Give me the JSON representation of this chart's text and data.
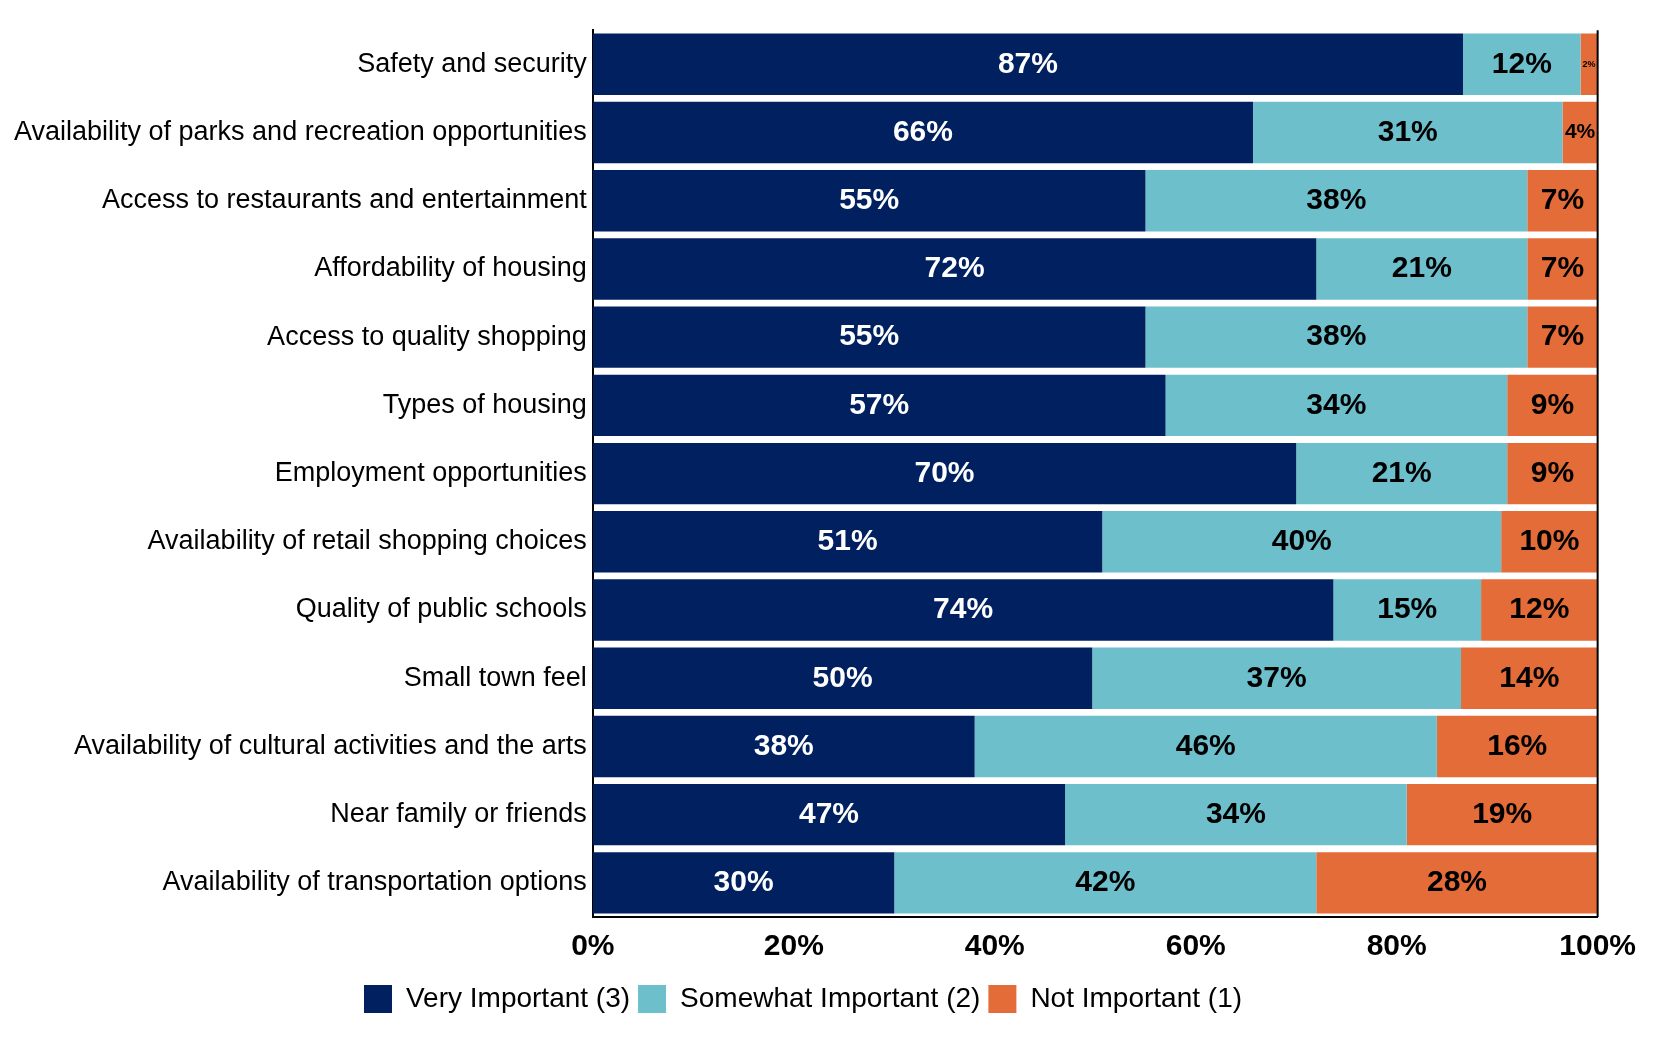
{
  "chart_data": {
    "type": "bar",
    "orientation": "horizontal",
    "stacked": true,
    "categories": [
      "Safety and security",
      "Availability of parks and recreation opportunities",
      "Access to restaurants and entertainment",
      "Affordability of housing",
      "Access to quality shopping",
      "Types of housing",
      "Employment opportunities",
      "Availability of retail shopping choices",
      "Quality of public schools",
      "Small town feel",
      "Availability of cultural activities and the arts",
      "Near family or friends",
      "Availability of transportation options"
    ],
    "series": [
      {
        "name": "Very Important (3)",
        "color": "#002060",
        "values": [
          86.6,
          65.7,
          55,
          72,
          55,
          57,
          70,
          50.7,
          73.7,
          49.7,
          38,
          47,
          30
        ],
        "value_labels": [
          "87%",
          "66%",
          "55%",
          "72%",
          "55%",
          "57%",
          "70%",
          "51%",
          "74%",
          "50%",
          "38%",
          "47%",
          "30%"
        ]
      },
      {
        "name": "Somewhat Important (2)",
        "color": "#6dbfcc",
        "values": [
          11.7,
          30.8,
          38,
          21,
          38,
          34,
          21,
          39.7,
          14.7,
          36.7,
          46,
          34,
          42
        ],
        "value_labels": [
          "12%",
          "31%",
          "38%",
          "21%",
          "38%",
          "34%",
          "21%",
          "40%",
          "15%",
          "37%",
          "46%",
          "34%",
          "42%"
        ]
      },
      {
        "name": "Not Important (1)",
        "color": "#e46c39",
        "values": [
          1.7,
          3.5,
          7,
          7,
          7,
          9,
          9,
          9.6,
          11.6,
          13.6,
          16,
          19,
          28
        ],
        "value_labels": [
          "2%",
          "4%",
          "7%",
          "7%",
          "7%",
          "9%",
          "9%",
          "10%",
          "12%",
          "14%",
          "16%",
          "19%",
          "28%"
        ]
      }
    ],
    "xlim": [
      0,
      100
    ],
    "xticks": [
      {
        "value": 0,
        "label": "0%"
      },
      {
        "value": 20,
        "label": "20%"
      },
      {
        "value": 40,
        "label": "40%"
      },
      {
        "value": 60,
        "label": "60%"
      },
      {
        "value": 80,
        "label": "80%"
      },
      {
        "value": 100,
        "label": "100%"
      }
    ],
    "grid": false,
    "legend": "bottom"
  }
}
